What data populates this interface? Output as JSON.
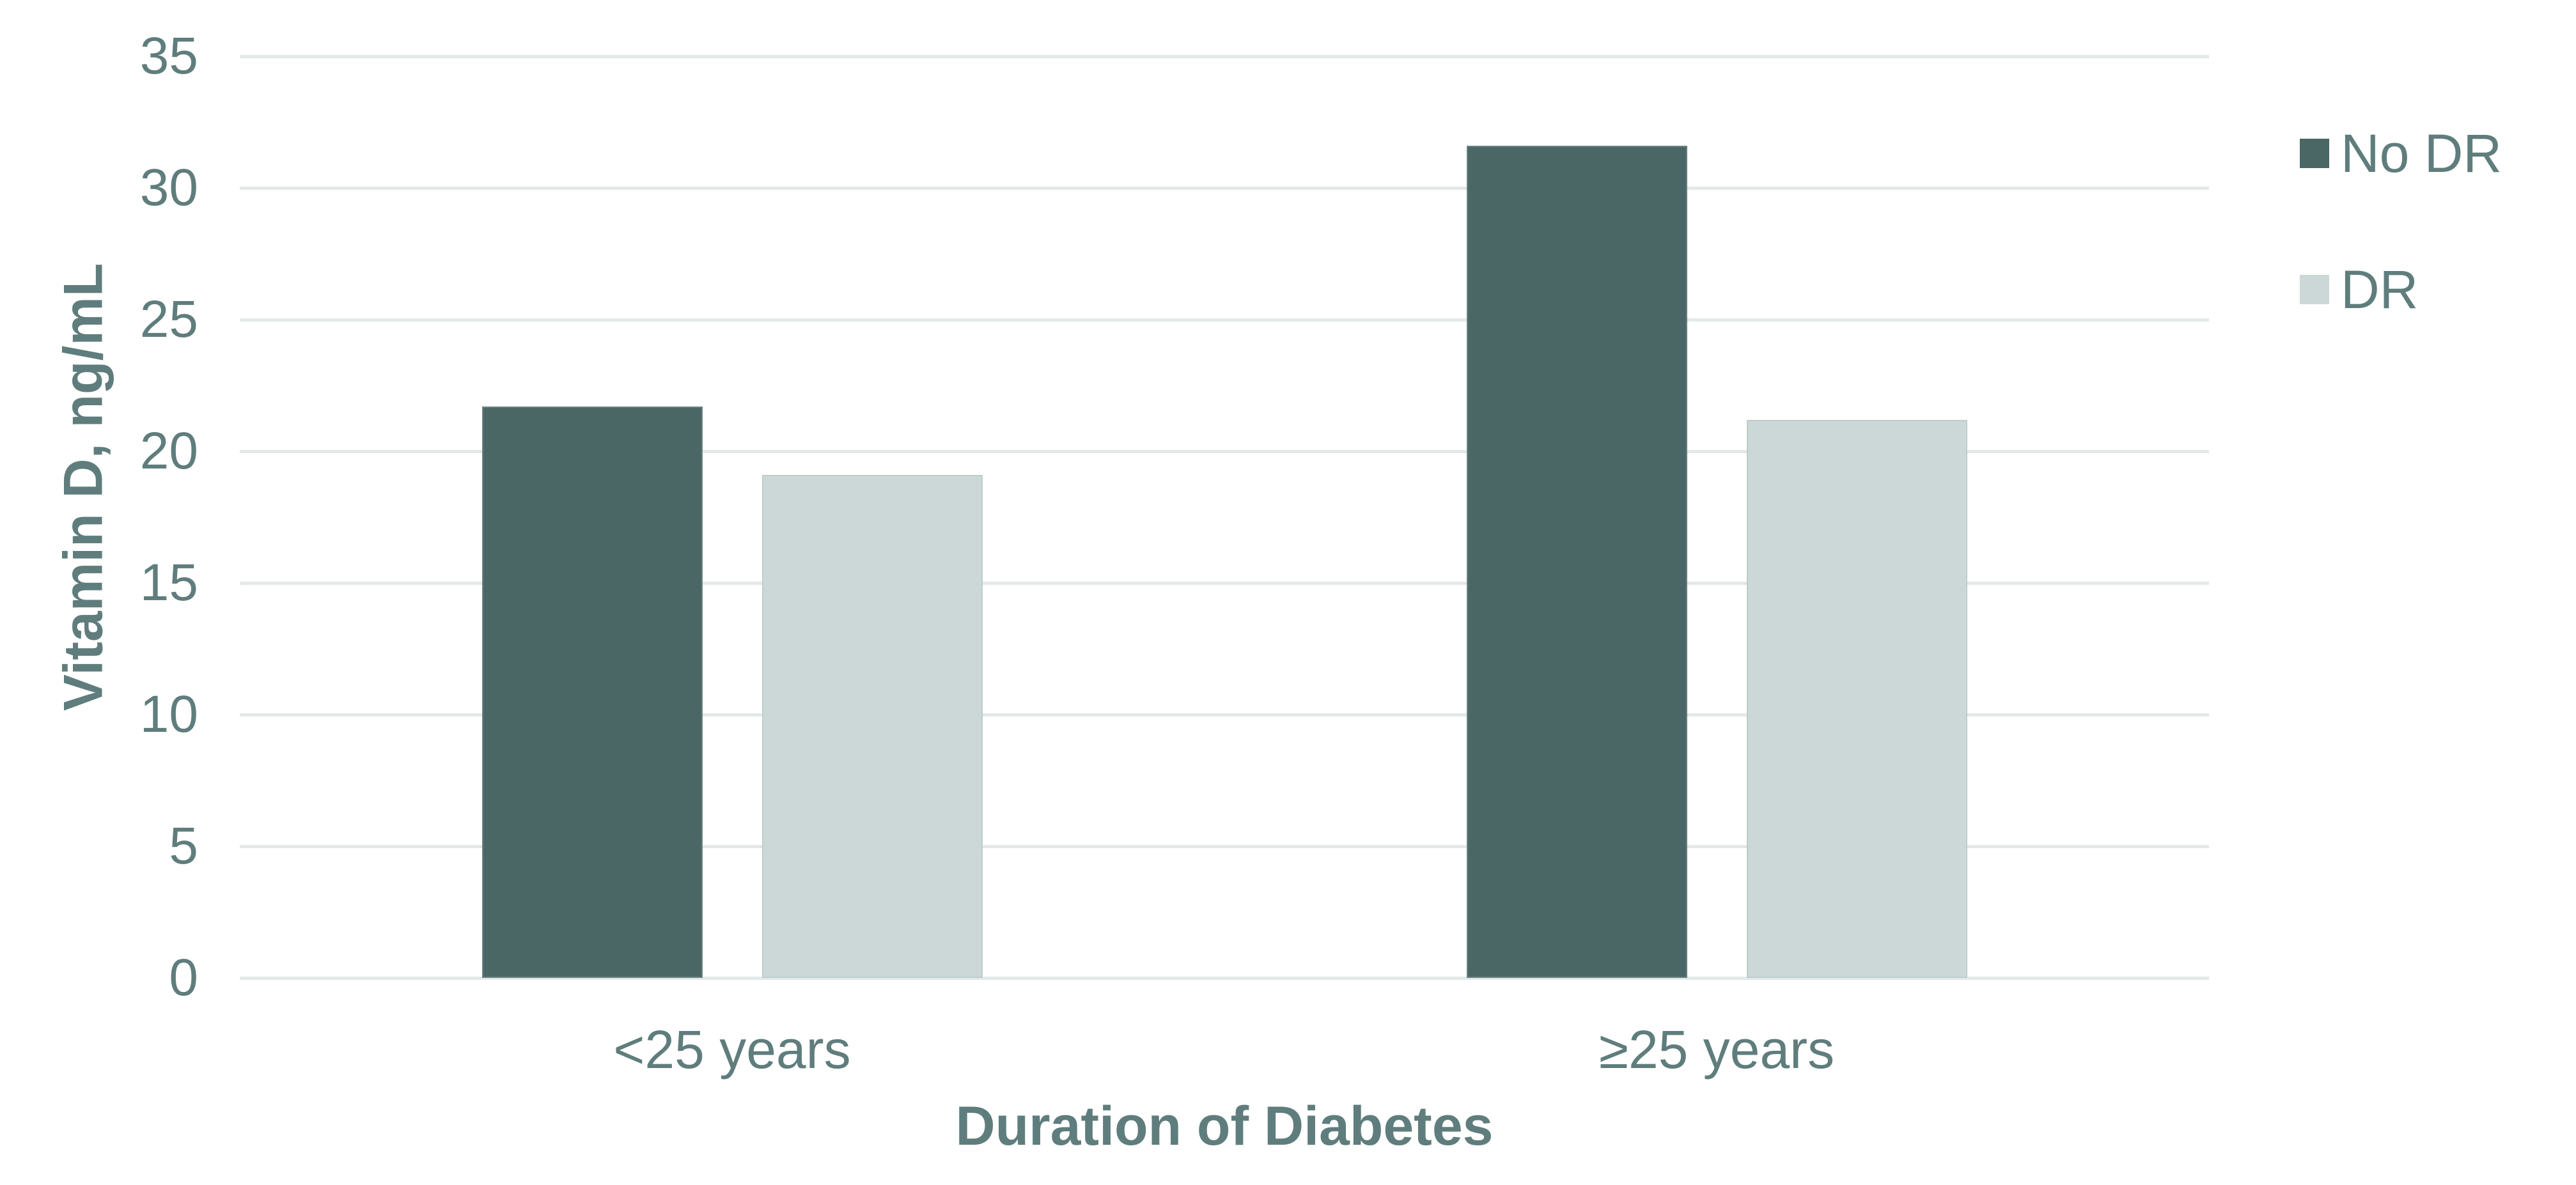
{
  "chart_data": {
    "type": "bar",
    "title": "",
    "categories": [
      "<25 years",
      "≥25 years"
    ],
    "series": [
      {
        "name": "No DR",
        "values": [
          21.7,
          31.6
        ],
        "color": "#4a6665"
      },
      {
        "name": "DR",
        "values": [
          19.1,
          21.2
        ],
        "color": "#cbd8d7"
      }
    ],
    "xlabel": "Duration of Diabetes",
    "ylabel": "Vitamin D, ng/mL",
    "ylim": [
      0,
      35
    ],
    "yticks": [
      0,
      5,
      10,
      15,
      20,
      25,
      30,
      35
    ],
    "grid": true,
    "legend_position": "right",
    "colors": {
      "text": "#5f7d7c",
      "gridline": "#e2e9e8",
      "background": "#ffffff",
      "series_no_dr": "#4a6665",
      "series_dr": "#cbd8d7"
    }
  }
}
